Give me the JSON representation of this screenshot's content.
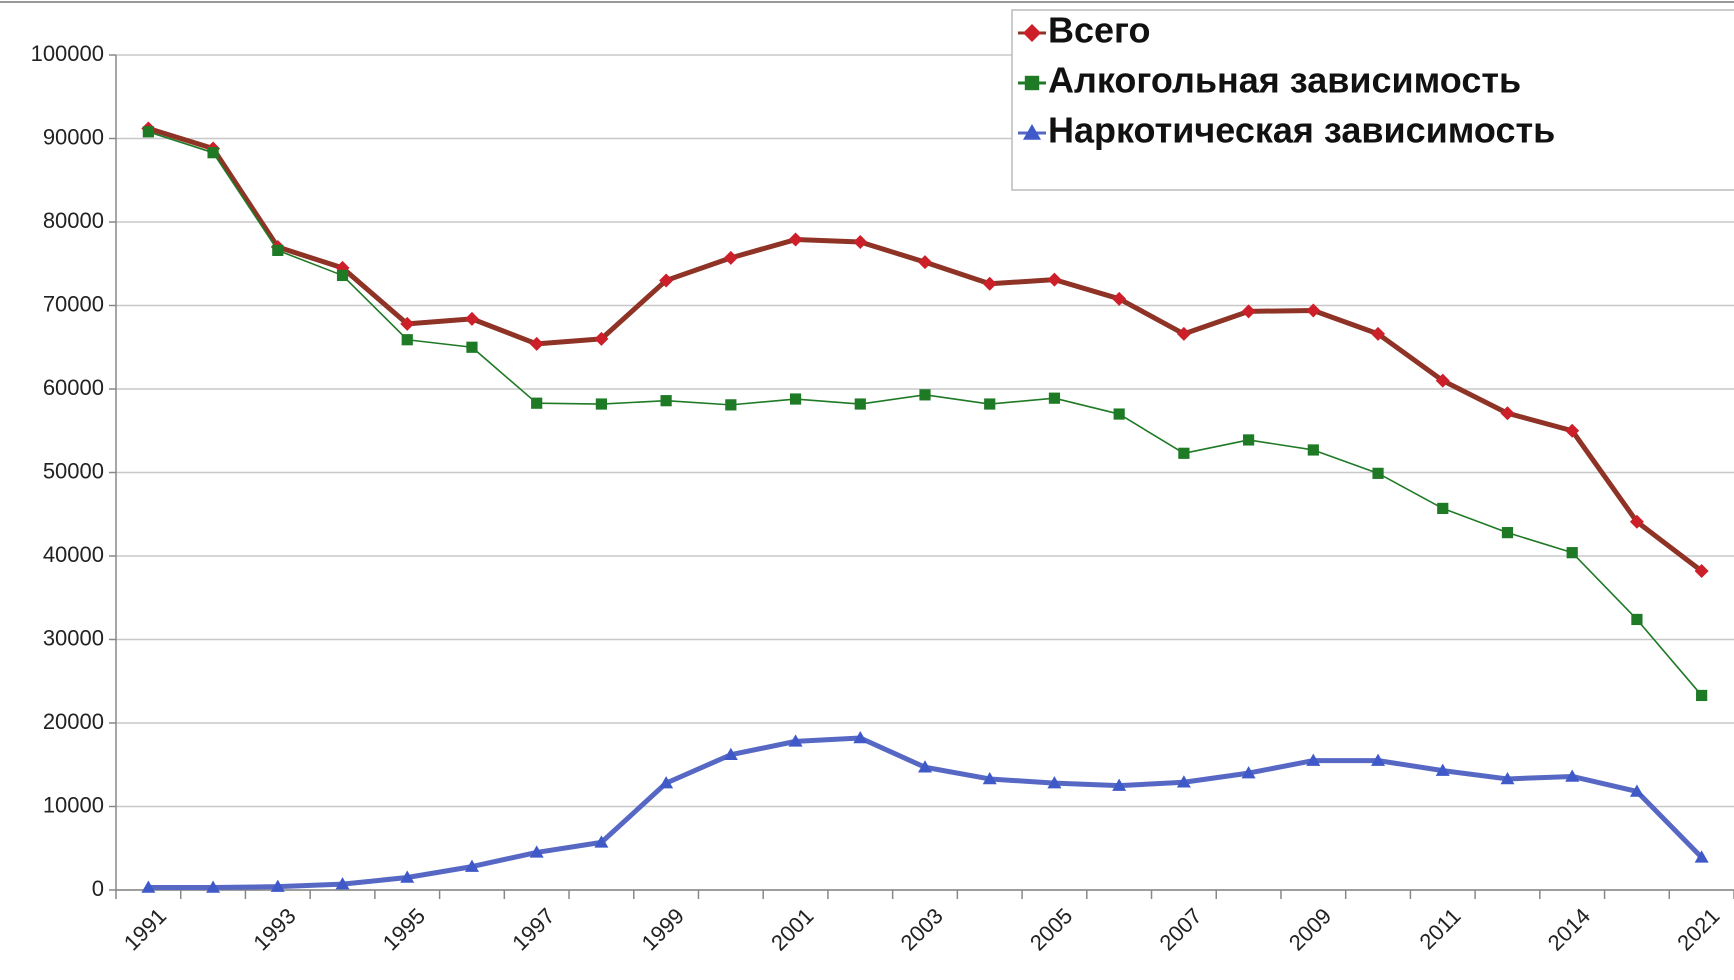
{
  "chart_data": {
    "type": "line",
    "categories": [
      "1991",
      null,
      "1993",
      null,
      "1995",
      null,
      "1997",
      null,
      "1999",
      null,
      "2001",
      null,
      "2003",
      null,
      "2005",
      null,
      "2007",
      null,
      "2009",
      null,
      "2011",
      null,
      "2014",
      null,
      "2021"
    ],
    "series": [
      {
        "name": "Всего",
        "color": "#cc1f2a",
        "line_color": "#8e3326",
        "marker": "diamond",
        "values": [
          91200,
          88800,
          77000,
          74500,
          67800,
          68400,
          65400,
          66000,
          73000,
          75700,
          77900,
          77600,
          75200,
          72600,
          73100,
          70800,
          66600,
          69300,
          69400,
          66600,
          61000,
          57100,
          55000,
          44100,
          38200
        ]
      },
      {
        "name": "Алкогольная зависимость",
        "color": "#1f7a25",
        "line_color": "#1f7a25",
        "marker": "square",
        "values": [
          90800,
          88300,
          76600,
          73600,
          65900,
          65000,
          58300,
          58200,
          58600,
          58100,
          58800,
          58200,
          59300,
          58200,
          58900,
          57000,
          52300,
          53900,
          52700,
          49900,
          45700,
          42800,
          40400,
          32400,
          23300
        ]
      },
      {
        "name": "Наркотическая зависимость",
        "color": "#3f59c9",
        "line_color": "#5668c4",
        "marker": "triangle",
        "values": [
          300,
          300,
          400,
          700,
          1500,
          2800,
          4500,
          5700,
          12800,
          16200,
          17800,
          18200,
          14700,
          13300,
          12800,
          12500,
          12900,
          14000,
          15500,
          15500,
          14300,
          13300,
          13600,
          11800,
          3900
        ]
      }
    ],
    "ylim": [
      0,
      100000
    ],
    "yticks": [
      0,
      10000,
      20000,
      30000,
      40000,
      50000,
      60000,
      70000,
      80000,
      90000,
      100000
    ],
    "grid": true,
    "legend": "top-right"
  }
}
